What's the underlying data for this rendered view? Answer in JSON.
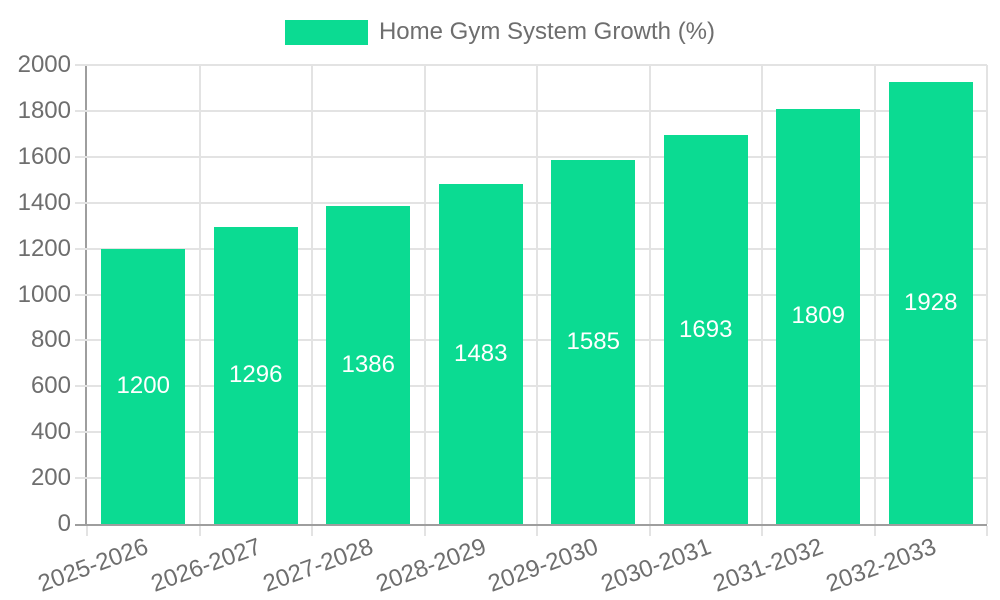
{
  "legend": {
    "label": "Home Gym System Growth (%)"
  },
  "chart_data": {
    "type": "bar",
    "title": "Home Gym System Growth (%)",
    "categories": [
      "2025-2026",
      "2026-2027",
      "2027-2028",
      "2028-2029",
      "2029-2030",
      "2030-2031",
      "2031-2032",
      "2032-2033"
    ],
    "values": [
      1200,
      1296,
      1386,
      1483,
      1585,
      1693,
      1809,
      1928
    ],
    "xlabel": "",
    "ylabel": "",
    "ylim": [
      0,
      2000
    ],
    "ytick_step": 200,
    "grid": true,
    "legend_position": "top-center",
    "value_labels": "inside-center",
    "xtick_rotation_deg": -20,
    "colors": {
      "bar": "#0bdb92",
      "gridline": "#e3e3e3",
      "axis_line": "#9e9e9e",
      "tick_text": "#6e6e6e",
      "value_label_text": "#ffffff",
      "background": "#ffffff"
    }
  }
}
